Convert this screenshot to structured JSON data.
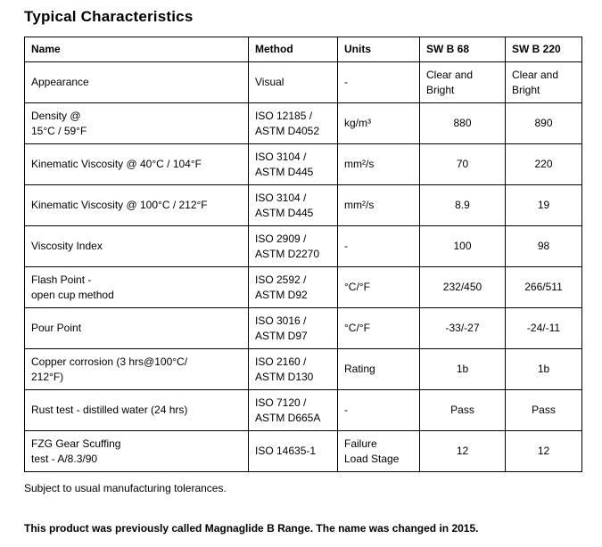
{
  "page": {
    "title": "Typical Characteristics"
  },
  "table": {
    "headers": {
      "name": "Name",
      "method": "Method",
      "units": "Units",
      "v68": "SW B 68",
      "v220": "SW B 220"
    },
    "rows": [
      {
        "name": "Appearance",
        "method": "Visual",
        "units": "-",
        "v68": "Clear and\nBright",
        "v220": "Clear and\nBright"
      },
      {
        "name": "Density @\n15°C / 59°F",
        "method": "ISO 12185 /\nASTM D4052",
        "units": "kg/m³",
        "v68": "880",
        "v220": "890"
      },
      {
        "name": "Kinematic Viscosity @ 40°C / 104°F",
        "method": "ISO 3104 /\nASTM D445",
        "units": "mm²/s",
        "v68": "70",
        "v220": "220"
      },
      {
        "name": "Kinematic Viscosity @ 100°C / 212°F",
        "method": "ISO 3104 /\nASTM D445",
        "units": "mm²/s",
        "v68": "8.9",
        "v220": "19"
      },
      {
        "name": "Viscosity Index",
        "method": "ISO 2909 /\nASTM D2270",
        "units": "-",
        "v68": "100",
        "v220": "98"
      },
      {
        "name": "Flash Point -\nopen cup method",
        "method": "ISO 2592 /\nASTM D92",
        "units": "°C/°F",
        "v68": "232/450",
        "v220": "266/511"
      },
      {
        "name": "Pour Point",
        "method": "ISO 3016 /\nASTM D97",
        "units": "°C/°F",
        "v68": "-33/-27",
        "v220": "-24/-11"
      },
      {
        "name": "Copper corrosion (3 hrs@100°C/\n212°F)",
        "method": "ISO 2160 /\nASTM D130",
        "units": "Rating",
        "v68": "1b",
        "v220": "1b"
      },
      {
        "name": "Rust test - distilled water (24 hrs)",
        "method": "ISO 7120 /\nASTM D665A",
        "units": "-",
        "v68": "Pass",
        "v220": "Pass"
      },
      {
        "name": "FZG Gear Scuffing\ntest - A/8.3/90",
        "method": "ISO 14635-1",
        "units": "Failure\nLoad Stage",
        "v68": "12",
        "v220": "12"
      }
    ]
  },
  "footnotes": {
    "tolerance": "Subject to usual manufacturing tolerances.",
    "rename": "This product was previously called Magnaglide B Range. The name was changed in 2015."
  }
}
